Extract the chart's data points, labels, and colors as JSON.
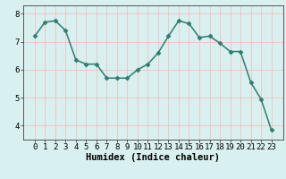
{
  "x": [
    0,
    1,
    2,
    3,
    4,
    5,
    6,
    7,
    8,
    9,
    10,
    11,
    12,
    13,
    14,
    15,
    16,
    17,
    18,
    19,
    20,
    21,
    22,
    23
  ],
  "y": [
    7.2,
    7.7,
    7.75,
    7.4,
    6.35,
    6.2,
    6.2,
    5.7,
    5.7,
    5.7,
    6.0,
    6.2,
    6.6,
    7.2,
    7.75,
    7.65,
    7.15,
    7.2,
    6.95,
    6.65,
    6.65,
    5.55,
    4.95,
    3.85
  ],
  "line_color": "#2e7d6e",
  "marker": "D",
  "marker_size": 2.5,
  "linewidth": 1.1,
  "background_color": "#d8f0f0",
  "grid_color": "#f5c0c0",
  "xlabel": "Humidex (Indice chaleur)",
  "xlabel_fontsize": 7.5,
  "tick_fontsize": 6.5,
  "ylim": [
    3.5,
    8.3
  ],
  "yticks": [
    4,
    5,
    6,
    7,
    8
  ],
  "xticks": [
    0,
    1,
    2,
    3,
    4,
    5,
    6,
    7,
    8,
    9,
    10,
    11,
    12,
    13,
    14,
    15,
    16,
    17,
    18,
    19,
    20,
    21,
    22,
    23
  ]
}
